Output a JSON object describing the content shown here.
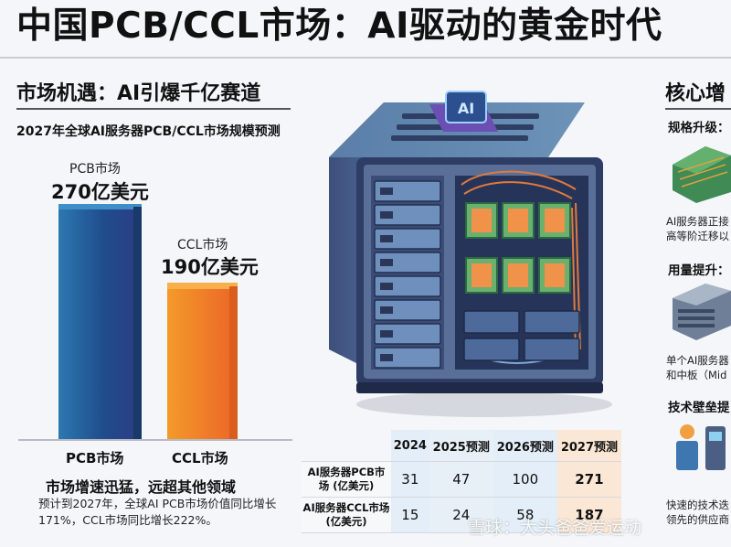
{
  "title": "中国PCB/CCL市场：AI驱动的黄金时代",
  "left_section": {
    "heading": "市场机遇：AI引爆千亿赛道",
    "chart_subtitle": "2027年全球AI服务器PCB/CCL市场规模预测",
    "headline": "市场增速迅猛，远超其他领域",
    "note": "预计到2027年，全球AI PCB市场价值同比增长171%，CCL市场同比增长222%。"
  },
  "chart_data": {
    "type": "bar",
    "title": "2027年全球AI服务器PCB/CCL市场规模预测",
    "categories": [
      "PCB市场",
      "CCL市场"
    ],
    "values": [
      270,
      190
    ],
    "value_labels": [
      "270亿美元",
      "190亿美元"
    ],
    "bar_names": [
      "PCB市场",
      "CCL市场"
    ],
    "colors": [
      "#1f4d8c",
      "#ec6b28"
    ]
  },
  "table": {
    "headers": [
      "",
      "2024",
      "2025预测",
      "2026预测",
      "2027预测"
    ],
    "rows": [
      {
        "label": "AI服务器PCB市场 (亿美元)",
        "values": [
          "31",
          "47",
          "100",
          "271"
        ]
      },
      {
        "label": "AI服务器CCL市场 (亿美元)",
        "values": [
          "15",
          "24",
          "58",
          "187"
        ]
      }
    ]
  },
  "right_section": {
    "heading": "核心增",
    "spec_label": "规格升级：",
    "spec_text": [
      "AI服务器正接",
      "高等阶迁移以"
    ],
    "usage_label": "用量提升：",
    "usage_text": [
      "单个AI服务器",
      "和中板（Mid"
    ],
    "barrier_label": "技术壁垒提",
    "barrier_text": [
      "快速的技术迭",
      "领先的供应商"
    ]
  },
  "illustration": {
    "chip_label": "AI"
  },
  "watermark": "雪球：大头爸爸爱运动"
}
